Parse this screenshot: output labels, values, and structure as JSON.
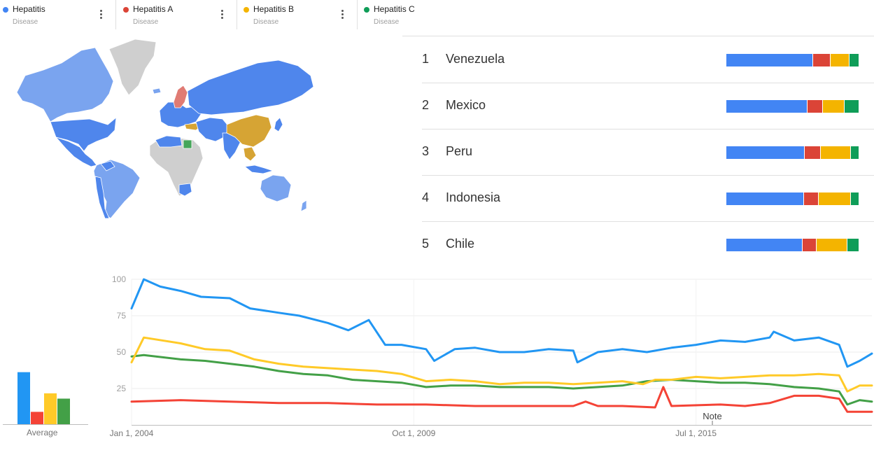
{
  "terms": [
    {
      "name": "Hepatitis",
      "type": "Disease",
      "color": "#4285F4"
    },
    {
      "name": "Hepatitis A",
      "type": "Disease",
      "color": "#DB4437"
    },
    {
      "name": "Hepatitis B",
      "type": "Disease",
      "color": "#F4B400"
    },
    {
      "name": "Hepatitis C",
      "type": "Disease",
      "color": "#0F9D58"
    }
  ],
  "map_colors": {
    "hepatitis": "#4f86ec",
    "hepatitis_light": "#7aa4ef",
    "hepatitis_a": "#e07b74",
    "hepatitis_b": "#d6a434",
    "hepatitis_c": "#46a65a",
    "no_data": "#cfcfcf"
  },
  "ranking": [
    {
      "rank": "1",
      "country": "Venezuela",
      "shares": [
        0.655,
        0.135,
        0.14,
        0.07
      ]
    },
    {
      "rank": "2",
      "country": "Mexico",
      "shares": [
        0.615,
        0.115,
        0.165,
        0.105
      ]
    },
    {
      "rank": "3",
      "country": "Peru",
      "shares": [
        0.595,
        0.12,
        0.225,
        0.06
      ]
    },
    {
      "rank": "4",
      "country": "Indonesia",
      "shares": [
        0.585,
        0.115,
        0.24,
        0.06
      ]
    },
    {
      "rank": "5",
      "country": "Chile",
      "shares": [
        0.575,
        0.105,
        0.235,
        0.085
      ]
    }
  ],
  "average_label": "Average",
  "chart_data": [
    {
      "type": "bar",
      "title": "",
      "xlabel": "Average",
      "categories": [
        "Hepatitis",
        "Hepatitis A",
        "Hepatitis B",
        "Hepatitis C"
      ],
      "values": [
        59,
        14,
        35,
        29
      ],
      "ylim": [
        0,
        100
      ],
      "colors": [
        "#2196F3",
        "#F44336",
        "#FFCA28",
        "#43A047"
      ]
    },
    {
      "type": "line",
      "title": "",
      "xlabel": "",
      "ylabel": "",
      "x_range": [
        "2004-01",
        "2019-02"
      ],
      "ylim": [
        0,
        100
      ],
      "yticks": [
        "25",
        "50",
        "75",
        "100"
      ],
      "xticks": [
        {
          "label": "Jan 1, 2004",
          "date": "2004-01"
        },
        {
          "label": "Oct 1, 2009",
          "date": "2009-10"
        },
        {
          "label": "Jul 1, 2015",
          "date": "2015-07"
        }
      ],
      "annotation": {
        "label": "Note",
        "date": "2015-11"
      },
      "grid": true,
      "series": [
        {
          "name": "Hepatitis",
          "color": "#2196F3",
          "points": [
            [
              "2004-01",
              80
            ],
            [
              "2004-04",
              100
            ],
            [
              "2004-08",
              95
            ],
            [
              "2005-01",
              92
            ],
            [
              "2005-06",
              88
            ],
            [
              "2006-01",
              87
            ],
            [
              "2006-06",
              80
            ],
            [
              "2007-01",
              77
            ],
            [
              "2007-06",
              75
            ],
            [
              "2008-01",
              70
            ],
            [
              "2008-06",
              65
            ],
            [
              "2008-11",
              72
            ],
            [
              "2009-03",
              55
            ],
            [
              "2009-07",
              55
            ],
            [
              "2010-01",
              52
            ],
            [
              "2010-03",
              44
            ],
            [
              "2010-08",
              52
            ],
            [
              "2011-01",
              53
            ],
            [
              "2011-07",
              50
            ],
            [
              "2012-01",
              50
            ],
            [
              "2012-07",
              52
            ],
            [
              "2013-01",
              51
            ],
            [
              "2013-02",
              43
            ],
            [
              "2013-07",
              50
            ],
            [
              "2014-01",
              52
            ],
            [
              "2014-07",
              50
            ],
            [
              "2015-01",
              53
            ],
            [
              "2015-07",
              55
            ],
            [
              "2016-01",
              58
            ],
            [
              "2016-07",
              57
            ],
            [
              "2017-01",
              60
            ],
            [
              "2017-02",
              64
            ],
            [
              "2017-07",
              58
            ],
            [
              "2018-01",
              60
            ],
            [
              "2018-06",
              55
            ],
            [
              "2018-08",
              40
            ],
            [
              "2018-11",
              44
            ],
            [
              "2019-02",
              49
            ]
          ]
        },
        {
          "name": "Hepatitis A",
          "color": "#F44336",
          "points": [
            [
              "2004-01",
              16
            ],
            [
              "2005-01",
              17
            ],
            [
              "2006-01",
              16
            ],
            [
              "2007-01",
              15
            ],
            [
              "2008-01",
              15
            ],
            [
              "2009-01",
              14
            ],
            [
              "2010-01",
              14
            ],
            [
              "2011-01",
              13
            ],
            [
              "2012-01",
              13
            ],
            [
              "2013-01",
              13
            ],
            [
              "2013-04",
              16
            ],
            [
              "2013-07",
              13
            ],
            [
              "2014-01",
              13
            ],
            [
              "2014-09",
              12
            ],
            [
              "2014-11",
              26
            ],
            [
              "2015-01",
              13
            ],
            [
              "2016-01",
              14
            ],
            [
              "2016-07",
              13
            ],
            [
              "2017-01",
              15
            ],
            [
              "2017-07",
              20
            ],
            [
              "2018-01",
              20
            ],
            [
              "2018-06",
              18
            ],
            [
              "2018-08",
              9
            ],
            [
              "2019-02",
              9
            ]
          ]
        },
        {
          "name": "Hepatitis B",
          "color": "#FFCA28",
          "points": [
            [
              "2004-01",
              43
            ],
            [
              "2004-04",
              60
            ],
            [
              "2005-01",
              56
            ],
            [
              "2005-07",
              52
            ],
            [
              "2006-01",
              51
            ],
            [
              "2006-07",
              45
            ],
            [
              "2007-01",
              42
            ],
            [
              "2007-07",
              40
            ],
            [
              "2008-01",
              39
            ],
            [
              "2008-07",
              38
            ],
            [
              "2009-01",
              37
            ],
            [
              "2009-07",
              35
            ],
            [
              "2010-01",
              30
            ],
            [
              "2010-07",
              31
            ],
            [
              "2011-01",
              30
            ],
            [
              "2011-07",
              28
            ],
            [
              "2012-01",
              29
            ],
            [
              "2012-07",
              29
            ],
            [
              "2013-01",
              28
            ],
            [
              "2013-07",
              29
            ],
            [
              "2014-01",
              30
            ],
            [
              "2014-06",
              28
            ],
            [
              "2014-09",
              31
            ],
            [
              "2015-01",
              31
            ],
            [
              "2015-07",
              33
            ],
            [
              "2016-01",
              32
            ],
            [
              "2016-07",
              33
            ],
            [
              "2017-01",
              34
            ],
            [
              "2017-07",
              34
            ],
            [
              "2018-01",
              35
            ],
            [
              "2018-06",
              34
            ],
            [
              "2018-08",
              23
            ],
            [
              "2018-11",
              27
            ],
            [
              "2019-02",
              27
            ]
          ]
        },
        {
          "name": "Hepatitis C",
          "color": "#43A047",
          "points": [
            [
              "2004-01",
              47
            ],
            [
              "2004-04",
              48
            ],
            [
              "2005-01",
              45
            ],
            [
              "2005-07",
              44
            ],
            [
              "2006-01",
              42
            ],
            [
              "2006-07",
              40
            ],
            [
              "2007-01",
              37
            ],
            [
              "2007-07",
              35
            ],
            [
              "2008-01",
              34
            ],
            [
              "2008-07",
              31
            ],
            [
              "2009-01",
              30
            ],
            [
              "2009-07",
              29
            ],
            [
              "2010-01",
              26
            ],
            [
              "2010-07",
              27
            ],
            [
              "2011-01",
              27
            ],
            [
              "2011-07",
              26
            ],
            [
              "2012-01",
              26
            ],
            [
              "2012-07",
              26
            ],
            [
              "2013-01",
              25
            ],
            [
              "2013-07",
              26
            ],
            [
              "2014-01",
              27
            ],
            [
              "2014-07",
              30
            ],
            [
              "2015-01",
              31
            ],
            [
              "2015-07",
              30
            ],
            [
              "2016-01",
              29
            ],
            [
              "2016-07",
              29
            ],
            [
              "2017-01",
              28
            ],
            [
              "2017-07",
              26
            ],
            [
              "2018-01",
              25
            ],
            [
              "2018-06",
              23
            ],
            [
              "2018-08",
              14
            ],
            [
              "2018-11",
              17
            ],
            [
              "2019-02",
              16
            ]
          ]
        }
      ]
    }
  ]
}
